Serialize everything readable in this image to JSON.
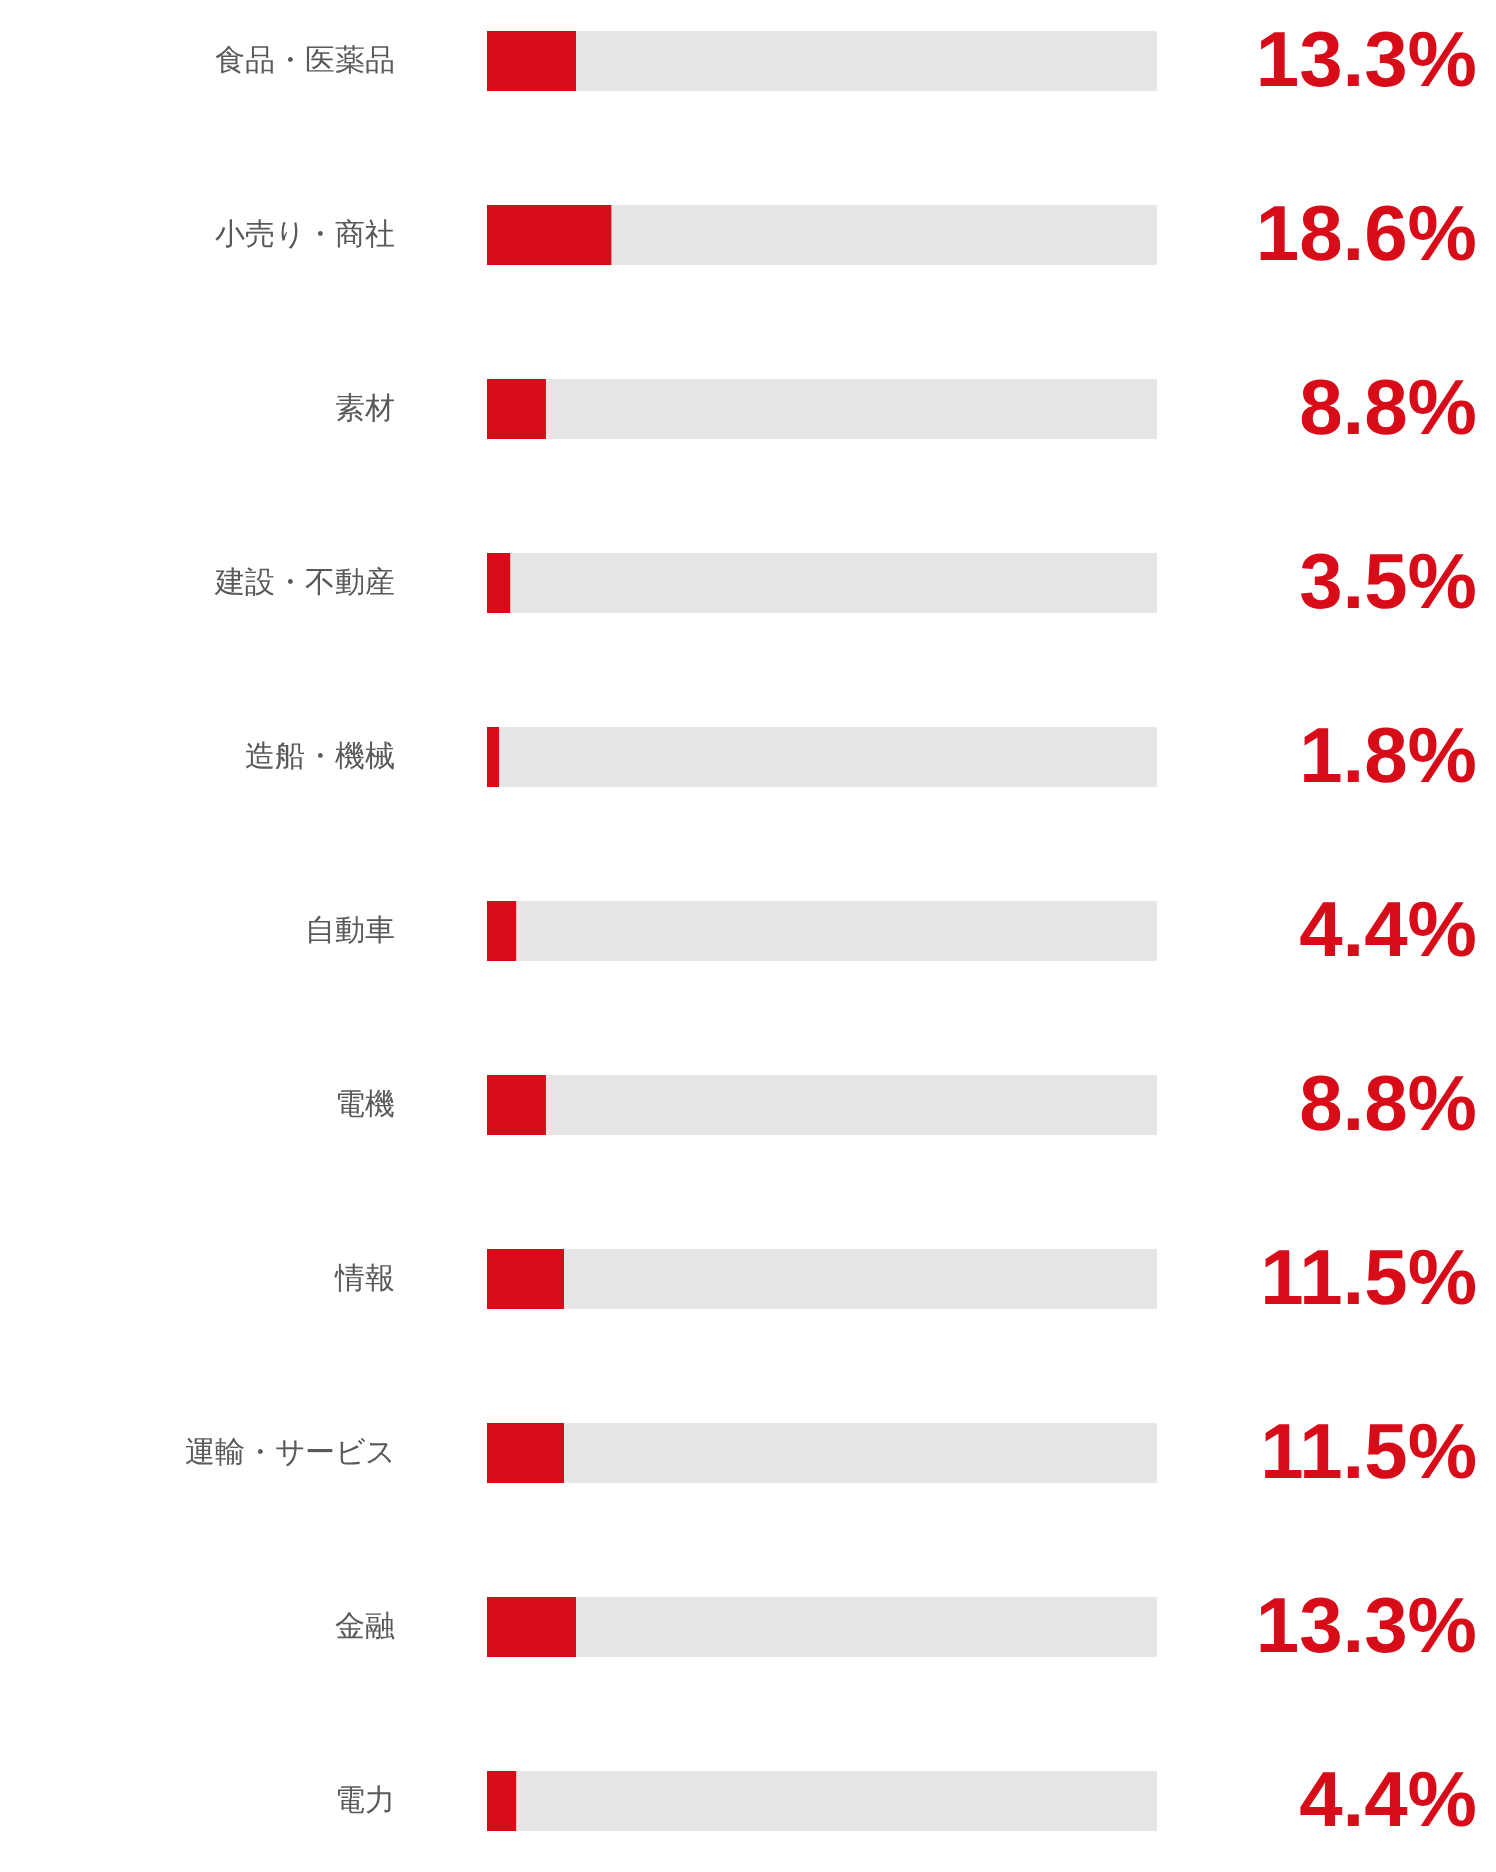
{
  "chart_data": {
    "type": "bar",
    "orientation": "horizontal",
    "stacked": true,
    "categories": [
      "食品・医薬品",
      "小売り・商社",
      "素材",
      "建設・不動産",
      "造船・機械",
      "自動車",
      "電機",
      "情報",
      "運輸・サービス",
      "金融",
      "電力"
    ],
    "series": [
      {
        "color": "#d70c18",
        "values": [
          13.3,
          18.6,
          8.8,
          3.5,
          1.8,
          4.4,
          8.8,
          11.5,
          11.5,
          13.3,
          4.4
        ],
        "value_labels": [
          "13.3%",
          "18.6%",
          "8.8%",
          "3.5%",
          "1.8%",
          "4.4%",
          "8.8%",
          "11.5%",
          "11.5%",
          "13.3%",
          "4.4%"
        ]
      },
      {
        "color": "#e6e6e6",
        "values": [
          86.7,
          81.4,
          91.2,
          96.5,
          98.2,
          95.6,
          91.2,
          88.5,
          88.5,
          86.7,
          95.6
        ]
      }
    ],
    "tick_labels": "y"
  }
}
